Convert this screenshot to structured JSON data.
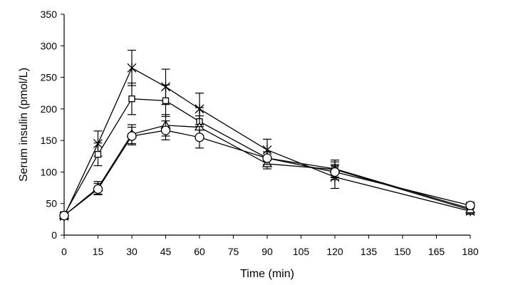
{
  "chart_data": {
    "type": "line",
    "title": "",
    "xlabel": "Time (min)",
    "ylabel": "Serum insulin (pmol/L)",
    "xlim": [
      0,
      180
    ],
    "ylim": [
      0,
      350
    ],
    "x_ticks": [
      0,
      15,
      30,
      45,
      60,
      75,
      90,
      105,
      120,
      135,
      150,
      165,
      180
    ],
    "y_ticks": [
      0,
      50,
      100,
      150,
      200,
      250,
      300,
      350
    ],
    "grid": false,
    "legend": "none",
    "x": [
      0,
      15,
      30,
      45,
      60,
      90,
      120,
      180
    ],
    "series": [
      {
        "marker": "star",
        "values": [
          30,
          145,
          265,
          235,
          200,
          135,
          92,
          38
        ],
        "errors": [
          5,
          20,
          28,
          28,
          25,
          17,
          18,
          5
        ]
      },
      {
        "marker": "square",
        "values": [
          32,
          128,
          216,
          213,
          180,
          122,
          105,
          42
        ],
        "errors": [
          5,
          18,
          25,
          25,
          22,
          10,
          14,
          5
        ]
      },
      {
        "marker": "triangle",
        "values": [
          31,
          75,
          160,
          174,
          171,
          113,
          104,
          40
        ],
        "errors": [
          5,
          10,
          15,
          17,
          18,
          8,
          12,
          5
        ]
      },
      {
        "marker": "circle",
        "values": [
          31,
          73,
          157,
          166,
          155,
          122,
          100,
          47
        ],
        "errors": [
          5,
          9,
          14,
          15,
          17,
          10,
          12,
          5
        ]
      }
    ]
  }
}
